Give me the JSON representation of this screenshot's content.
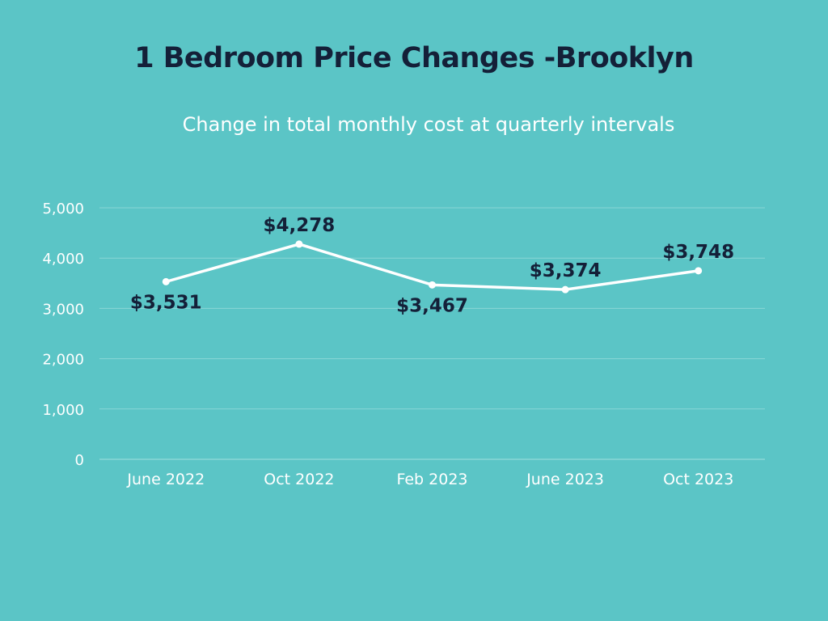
{
  "theme": {
    "background": "#5bc5c6",
    "title_color": "#142038",
    "text_color": "#ffffff",
    "line_color": "#ffffff",
    "gridline_color": "#8ad6d6",
    "data_label_color": "#142038"
  },
  "chart_data": {
    "type": "line",
    "title": "1 Bedroom Price Changes -Brooklyn",
    "subtitle": "Change in total monthly cost at quarterly intervals",
    "xlabel": "",
    "ylabel": "",
    "categories": [
      "June 2022",
      "Oct 2022",
      "Feb 2023",
      "June 2023",
      "Oct 2023"
    ],
    "series": [
      {
        "values": [
          3531,
          4278,
          3467,
          3374,
          3748
        ],
        "data_labels": [
          "$3,531",
          "$4,278",
          "$3,467",
          "$3,374",
          "$3,748"
        ],
        "label_positions": [
          "below",
          "above",
          "below",
          "above",
          "above"
        ]
      }
    ],
    "ylim": [
      0,
      5000
    ],
    "yticks": [
      0,
      1000,
      2000,
      3000,
      4000,
      5000
    ],
    "ytick_labels": [
      "0",
      "1,000",
      "2,000",
      "3,000",
      "4,000",
      "5,000"
    ],
    "grid": true,
    "legend": "none"
  }
}
